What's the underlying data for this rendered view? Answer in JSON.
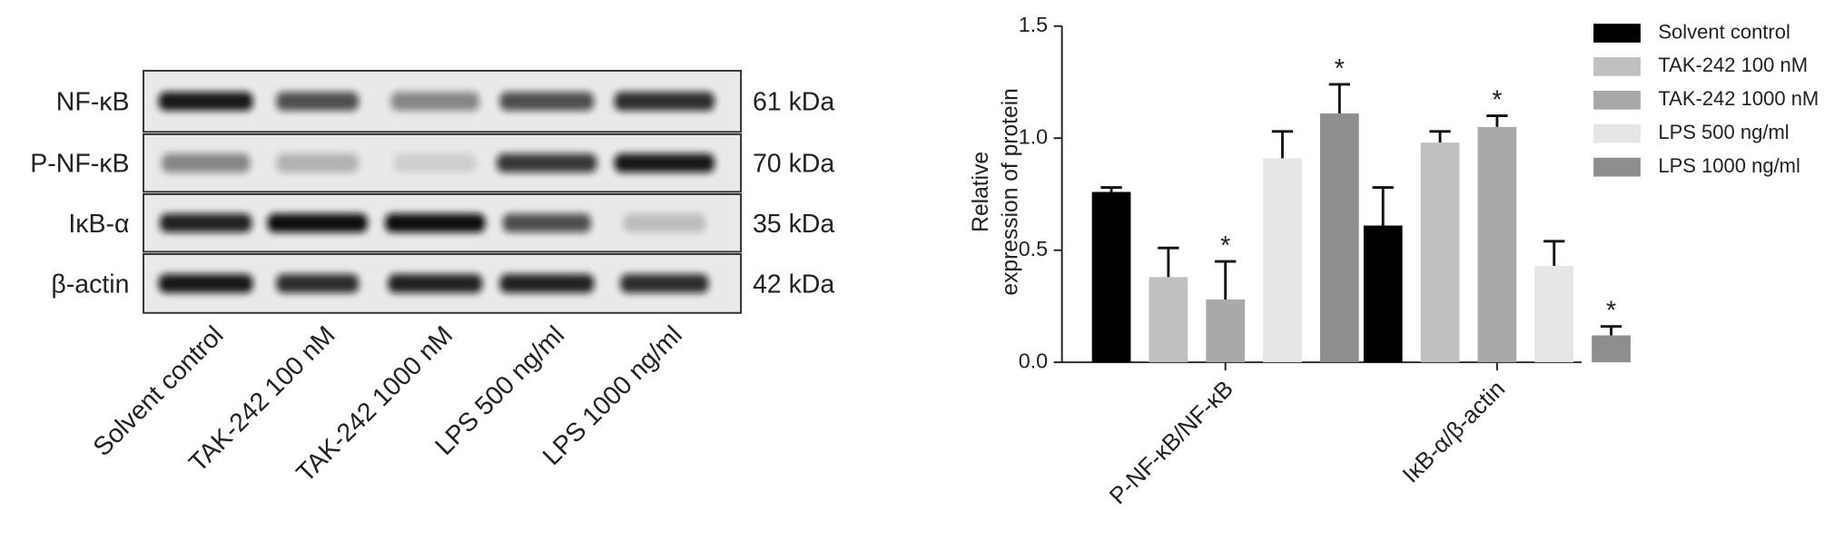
{
  "blot": {
    "rows": [
      {
        "label": "NF-κB",
        "size": "61 kDa"
      },
      {
        "label": "P-NF-κB",
        "size": "70 kDa"
      },
      {
        "label": "IκB-α",
        "size": "35 kDa"
      },
      {
        "label": "β-actin",
        "size": "42 kDa"
      }
    ],
    "lanes": [
      "Solvent control",
      "TAK-242 100 nM",
      "TAK-242 1000 nM",
      "LPS 500 ng/ml",
      "LPS 1000 ng/ml"
    ]
  },
  "chart_data": {
    "type": "bar",
    "y_label": [
      "Relative",
      "expression of protein"
    ],
    "categories": [
      "P-NF-κB/NF-κB",
      "IκB-α/β-actin"
    ],
    "series": [
      {
        "name": "Solvent control",
        "color": "#000000",
        "values": [
          0.76,
          0.61
        ],
        "errors": [
          0.02,
          0.17
        ]
      },
      {
        "name": "TAK-242 100 nM",
        "color": "#c0c0c0",
        "values": [
          0.38,
          0.98
        ],
        "errors": [
          0.13,
          0.05
        ]
      },
      {
        "name": "TAK-242 1000 nM",
        "color": "#a9a9a9",
        "values": [
          0.28,
          1.05
        ],
        "errors": [
          0.17,
          0.05
        ]
      },
      {
        "name": "LPS 500 ng/ml",
        "color": "#e6e6e6",
        "values": [
          0.91,
          0.43
        ],
        "errors": [
          0.12,
          0.11
        ]
      },
      {
        "name": "LPS 1000 ng/ml",
        "color": "#8e8e8e",
        "values": [
          1.11,
          0.12
        ],
        "errors": [
          0.13,
          0.04
        ]
      }
    ],
    "annotations": [
      {
        "text": "*",
        "series": 2,
        "category": 0
      },
      {
        "text": "*",
        "series": 4,
        "category": 0
      },
      {
        "text": "*",
        "series": 2,
        "category": 1
      },
      {
        "text": "*",
        "series": 4,
        "category": 1
      }
    ],
    "ylim": [
      0,
      1.5
    ],
    "yticks": [
      {
        "value": 0,
        "label": "0.0"
      },
      {
        "value": 0.5,
        "label": "0.5"
      },
      {
        "value": 1,
        "label": "1.0"
      },
      {
        "value": 1.5,
        "label": "1.5"
      }
    ],
    "legend": "top-right"
  }
}
